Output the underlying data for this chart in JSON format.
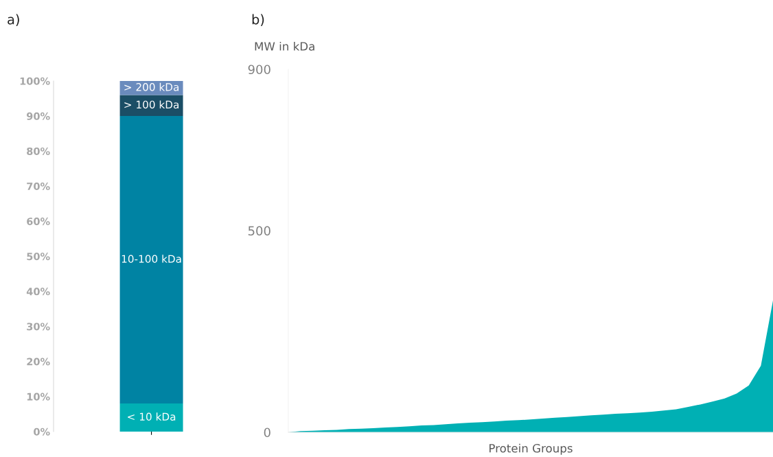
{
  "chart_data": [
    {
      "type": "bar",
      "title": "a)",
      "stacked": true,
      "categories": [
        null
      ],
      "ylim": [
        0,
        100
      ],
      "yticks": [
        {
          "value": 0,
          "label": "0%"
        },
        {
          "value": 10,
          "label": "10%"
        },
        {
          "value": 20,
          "label": "20%"
        },
        {
          "value": 30,
          "label": "30%"
        },
        {
          "value": 40,
          "label": "40%"
        },
        {
          "value": 50,
          "label": "50%"
        },
        {
          "value": 60,
          "label": "60%"
        },
        {
          "value": 70,
          "label": "70%"
        },
        {
          "value": 80,
          "label": "80%"
        },
        {
          "value": 90,
          "label": "90%"
        },
        {
          "value": 100,
          "label": "100%"
        }
      ],
      "tick_labels": "y",
      "grid": false,
      "legend": false,
      "series": [
        {
          "name": "< 10 kDa",
          "color": "#00b0b4",
          "values": [
            8
          ]
        },
        {
          "name": "10-100 kDa",
          "color": "#0083a3",
          "values": [
            82
          ]
        },
        {
          "name": "> 100 kDa",
          "color": "#1b4e66",
          "values": [
            6
          ]
        },
        {
          "name": "> 200 kDa",
          "color": "#6a8bbd",
          "values": [
            4
          ]
        }
      ]
    },
    {
      "type": "area",
      "title": "b)",
      "ylabel": "MW in kDa",
      "xlabel": "Protein Groups",
      "ylim": [
        0,
        900
      ],
      "yticks": [
        0,
        500,
        900
      ],
      "tick_labels": "y",
      "grid": false,
      "legend": false,
      "categories": [
        null,
        null,
        null,
        null,
        null,
        null,
        null,
        null,
        null,
        null,
        null,
        null,
        null,
        null,
        null,
        null,
        null,
        null,
        null,
        null,
        null,
        null,
        null,
        null,
        null,
        null,
        null,
        null,
        null,
        null,
        null,
        null,
        null,
        null,
        null,
        null,
        null,
        null,
        null,
        null,
        null
      ],
      "series": [
        {
          "color": "#00b0b4",
          "values": [
            0,
            3,
            4,
            5,
            6,
            8,
            9,
            10,
            12,
            13,
            15,
            17,
            18,
            20,
            22,
            24,
            25,
            27,
            29,
            30,
            32,
            34,
            36,
            38,
            40,
            42,
            44,
            46,
            47,
            49,
            51,
            54,
            57,
            63,
            69,
            76,
            84,
            96,
            116,
            165,
            327
          ]
        }
      ]
    }
  ]
}
